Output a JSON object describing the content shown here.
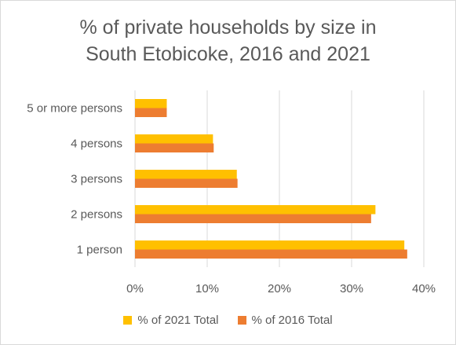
{
  "chart_data": {
    "type": "bar",
    "orientation": "horizontal",
    "title": "% of private households by size in South Etobicoke, 2016 and 2021",
    "title_lines": [
      "% of private households by size in",
      "South Etobicoke, 2016 and 2021"
    ],
    "categories": [
      "1 person",
      "2 persons",
      "3 persons",
      "4 persons",
      "5 or more persons"
    ],
    "series": [
      {
        "name": "% of 2021 Total",
        "color": "#ffc000",
        "values": [
          37.3,
          33.3,
          14.1,
          10.8,
          4.4
        ]
      },
      {
        "name": "% of 2016 Total",
        "color": "#ed7d31",
        "values": [
          37.7,
          32.7,
          14.2,
          10.9,
          4.4
        ]
      }
    ],
    "xlim": [
      0,
      40
    ],
    "x_ticks": [
      "0%",
      "10%",
      "20%",
      "30%",
      "40%"
    ],
    "xlabel": "",
    "ylabel": "",
    "grid": true,
    "legend_position": "bottom"
  }
}
